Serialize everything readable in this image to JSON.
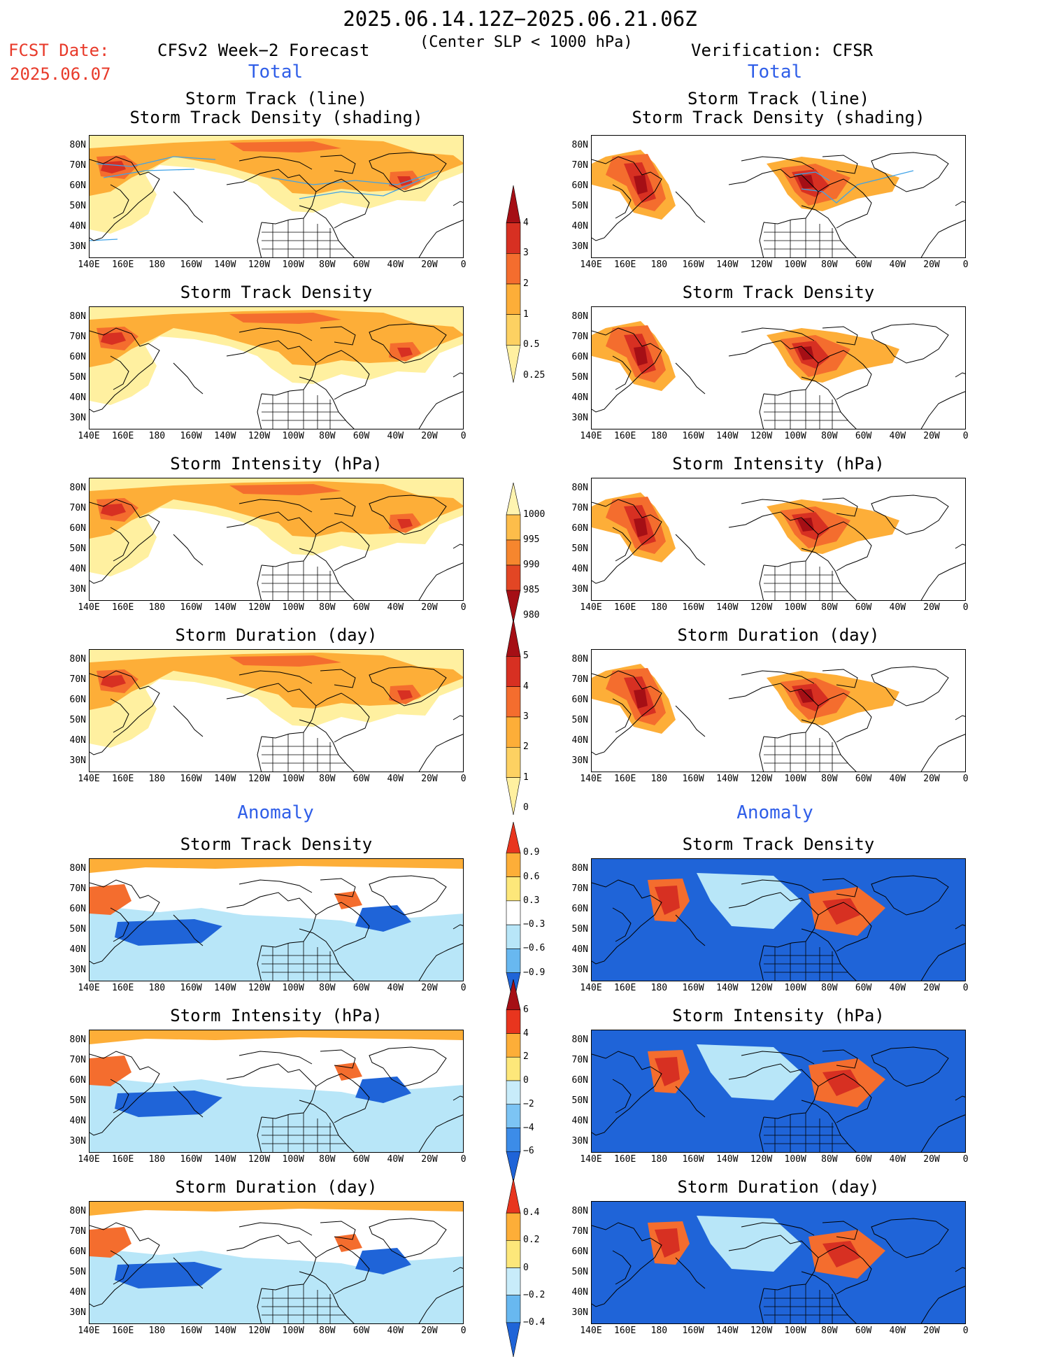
{
  "header": {
    "date_range": "2025.06.14.12Z−2025.06.21.06Z",
    "criterion": "(Center SLP < 1000 hPa)",
    "fcst_label": "FCST Date:",
    "fcst_date": "2025.06.07",
    "left_title": "CFSv2 Week−2 Forecast",
    "right_title": "Verification: CFSR",
    "total_label": "Total",
    "anomaly_label": "Anomaly"
  },
  "panel_titles": {
    "track": "Storm Track (line)\nStorm Track Density (shading)",
    "density": "Storm Track Density",
    "intensity": "Storm Intensity (hPa)",
    "duration": "Storm Duration (day)"
  },
  "axes": {
    "lat_ticks": [
      "80N",
      "70N",
      "60N",
      "50N",
      "40N",
      "30N"
    ],
    "lon_ticks": [
      "140E",
      "160E",
      "180",
      "160W",
      "140W",
      "120W",
      "100W",
      "80W",
      "60W",
      "40W",
      "20W",
      "0"
    ]
  },
  "colorbars": [
    {
      "id": "density",
      "labels": [
        "4",
        "3",
        "2",
        "1",
        "0.5",
        "0.25"
      ],
      "colors": [
        "#a50f15",
        "#d73022",
        "#f46d2e",
        "#fdae38",
        "#fdd162",
        "#fff0a0"
      ]
    },
    {
      "id": "intensity",
      "labels": [
        "1000",
        "995",
        "990",
        "985",
        "980"
      ],
      "colors": [
        "#fff4b0",
        "#fdbd4a",
        "#f6862e",
        "#e24624",
        "#a50f15"
      ]
    },
    {
      "id": "duration",
      "labels": [
        "5",
        "4",
        "3",
        "2",
        "1",
        "0"
      ],
      "colors": [
        "#a50f15",
        "#d73022",
        "#f46d2e",
        "#fdae38",
        "#fdd162",
        "#fff0a0"
      ]
    },
    {
      "id": "anom_density",
      "labels": [
        "0.9",
        "0.6",
        "0.3",
        "−0.3",
        "−0.6",
        "−0.9"
      ],
      "colors": [
        "#e8351e",
        "#fdae38",
        "#fde77a",
        "#ffffff",
        "#b8e6f8",
        "#68b8f0",
        "#1f64d8"
      ]
    },
    {
      "id": "anom_intensity",
      "labels": [
        "6",
        "4",
        "2",
        "0",
        "−2",
        "−4",
        "−6"
      ],
      "colors": [
        "#a50f15",
        "#e8351e",
        "#fdae38",
        "#fde77a",
        "#c8ecfa",
        "#7cc4f4",
        "#3c8ce8",
        "#1f64d8"
      ]
    },
    {
      "id": "anom_duration",
      "labels": [
        "0.4",
        "0.2",
        "0",
        "−0.2",
        "−0.4"
      ],
      "colors": [
        "#e8351e",
        "#fdae38",
        "#fde77a",
        "#c8ecfa",
        "#68b8f0",
        "#1f64d8"
      ]
    }
  ],
  "palette": {
    "light": "#fff0a0",
    "pale": "#fdd162",
    "mid": "#fdae38",
    "orange": "#f46d2e",
    "red": "#d73022",
    "dark": "#a50f15",
    "track_line": "#3fa3e8",
    "anom_blue": "#1f64d8",
    "anom_lblue": "#b8e6f8",
    "anom_mblue": "#68b8f0"
  }
}
